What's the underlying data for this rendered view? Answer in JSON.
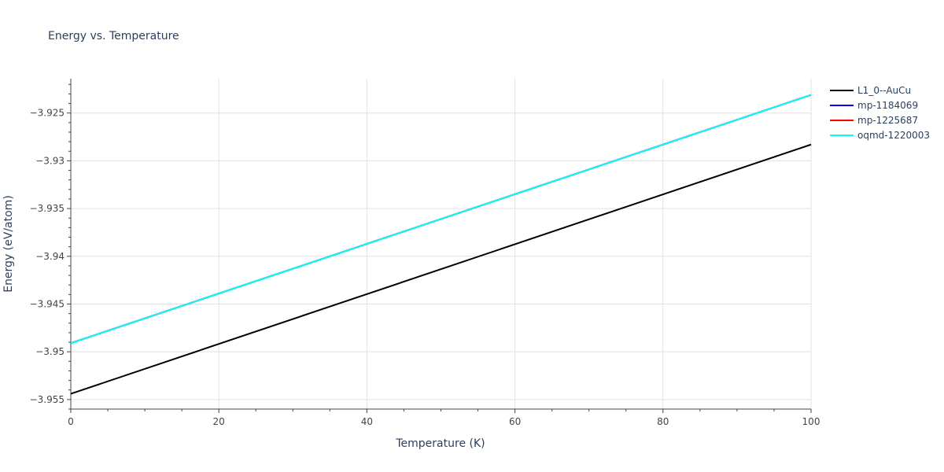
{
  "chart_data": {
    "type": "line",
    "title": "Energy vs. Temperature",
    "xlabel": "Temperature (K)",
    "ylabel": "Energy (eV/atom)",
    "xlim": [
      0,
      100
    ],
    "ylim": [
      -3.956,
      -3.9214
    ],
    "x_ticks": [
      0,
      20,
      40,
      60,
      80,
      100
    ],
    "x_tick_labels": [
      "0",
      "20",
      "40",
      "60",
      "80",
      "100"
    ],
    "y_ticks": [
      -3.955,
      -3.95,
      -3.945,
      -3.94,
      -3.935,
      -3.93,
      -3.925
    ],
    "y_tick_labels": [
      "−3.955",
      "−3.95",
      "−3.945",
      "−3.94",
      "−3.935",
      "−3.93",
      "−3.925"
    ],
    "grid": true,
    "legend_position": "top-right",
    "series": [
      {
        "name": "L1_0--AuCu",
        "color": "#000000",
        "x": [
          0,
          100
        ],
        "y": [
          -3.9544,
          -3.9283
        ]
      },
      {
        "name": "mp-1184069",
        "color": "#0000ff",
        "x": [
          0,
          100
        ],
        "y": [
          -3.9491,
          -3.9231
        ]
      },
      {
        "name": "mp-1225687",
        "color": "#ff0000",
        "x": [
          0,
          100
        ],
        "y": [
          -3.9491,
          -3.9231
        ]
      },
      {
        "name": "oqmd-1220003",
        "color": "#00ffff",
        "x": [
          0,
          100
        ],
        "y": [
          -3.9491,
          -3.9231
        ]
      }
    ]
  }
}
